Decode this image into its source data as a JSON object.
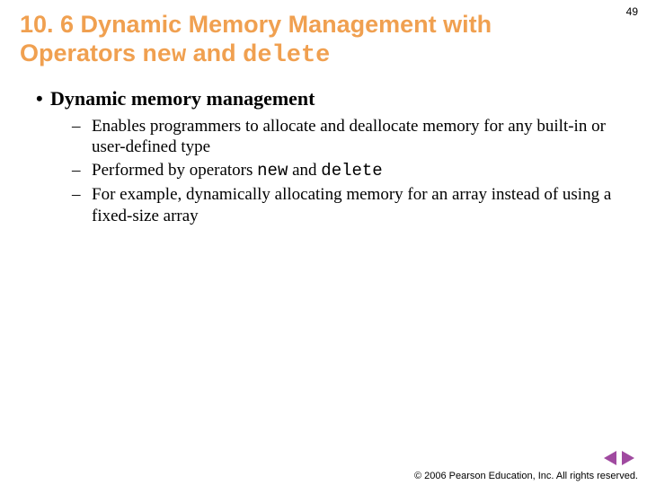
{
  "page_number": "49",
  "title": {
    "prefix": "10. 6 Dynamic Memory Management with Operators ",
    "code1": "new",
    "mid": " and ",
    "code2": "delete"
  },
  "bullet_l1": "Dynamic memory management",
  "sub": {
    "a": "Enables programmers to allocate and deallocate memory for any built-in or user-defined type",
    "b_pre": "Performed by operators ",
    "b_code1": "new",
    "b_mid": " and ",
    "b_code2": "delete",
    "c": "For example, dynamically allocating memory for an array instead of using a fixed-size array"
  },
  "footer": "© 2006 Pearson Education, Inc. All rights reserved.",
  "colors": {
    "title": "#f0a050",
    "nav": "#a04aa0",
    "text": "#000000",
    "background": "#ffffff"
  },
  "fonts": {
    "title_pt": 27,
    "l1_pt": 22,
    "l2_pt": 19,
    "pagenum_pt": 12,
    "footer_pt": 11
  }
}
